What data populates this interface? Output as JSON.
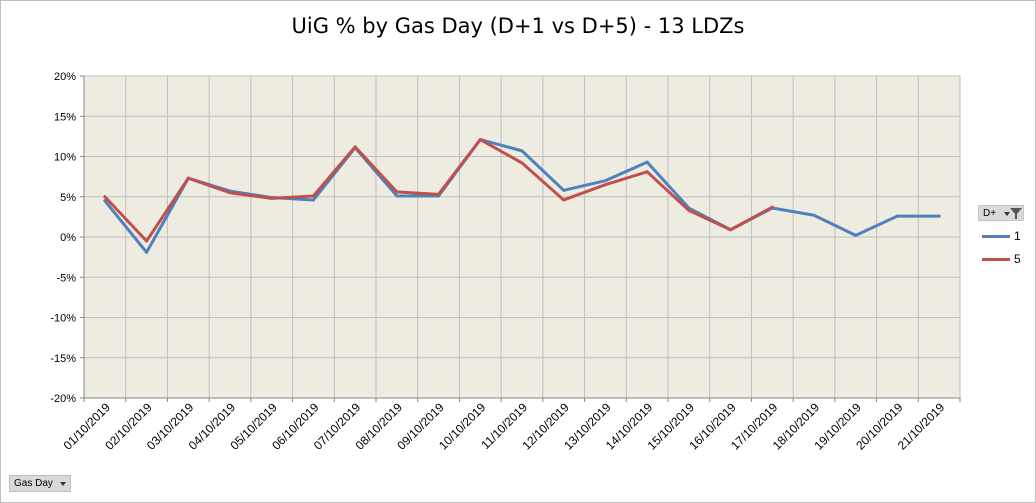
{
  "chart_data": {
    "type": "line",
    "title": "UiG % by Gas Day (D+1 vs D+5) - 13 LDZs",
    "xlabel": "",
    "ylabel": "",
    "categories": [
      "01/10/2019",
      "02/10/2019",
      "03/10/2019",
      "04/10/2019",
      "05/10/2019",
      "06/10/2019",
      "07/10/2019",
      "08/10/2019",
      "09/10/2019",
      "10/10/2019",
      "11/10/2019",
      "12/10/2019",
      "13/10/2019",
      "14/10/2019",
      "15/10/2019",
      "16/10/2019",
      "17/10/2019",
      "18/10/2019",
      "19/10/2019",
      "20/10/2019",
      "21/10/2019"
    ],
    "yticks": [
      "20%",
      "15%",
      "10%",
      "5%",
      "0%",
      "-5%",
      "-10%",
      "-15%",
      "-20%"
    ],
    "ylim": [
      -0.2,
      0.2
    ],
    "grid": true,
    "legend_position": "right",
    "plot_background": "#eeece1",
    "series": [
      {
        "name": "1",
        "color": "#4f81bd",
        "values": [
          0.045,
          -0.019,
          0.073,
          0.057,
          0.049,
          0.046,
          0.111,
          0.051,
          0.051,
          0.121,
          0.107,
          0.058,
          0.07,
          0.093,
          0.036,
          0.009,
          0.036,
          0.027,
          0.002,
          0.026,
          0.026
        ]
      },
      {
        "name": "5",
        "color": "#c0504d",
        "values": [
          0.05,
          -0.005,
          0.073,
          0.055,
          0.048,
          0.051,
          0.112,
          0.056,
          0.053,
          0.121,
          0.092,
          0.046,
          0.065,
          0.081,
          0.033,
          0.009,
          0.037,
          null,
          null,
          null,
          null
        ]
      }
    ]
  },
  "legend": {
    "header": "D+"
  },
  "field_button": {
    "label": "Gas Day"
  }
}
